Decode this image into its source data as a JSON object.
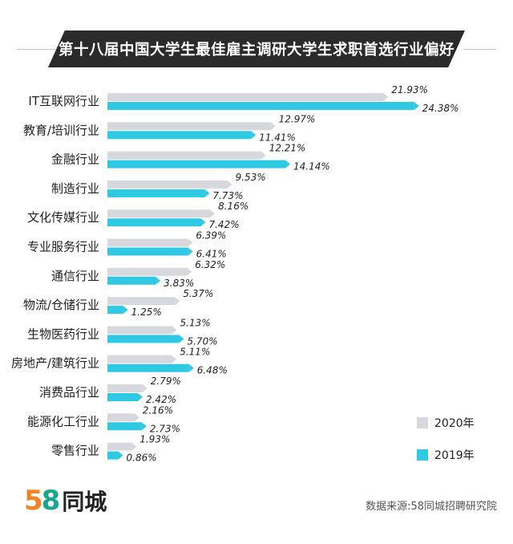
{
  "title": "第十八届中国大学生最佳雇主调研大学生求职首选行业偏好",
  "source": "数据来源:58同城招聘研究院",
  "logo": {
    "num_a": "5",
    "num_b": "8",
    "text": "同城"
  },
  "colors": {
    "s2020": "#d7d8de",
    "s2019": "#2fc9e4",
    "title_bg": "#2b2b2b"
  },
  "chart_data": {
    "type": "bar",
    "orientation": "horizontal",
    "categories": [
      "IT互联网行业",
      "教育/培训行业",
      "金融行业",
      "制造行业",
      "文化传媒行业",
      "专业服务行业",
      "通信行业",
      "物流/仓储行业",
      "生物医药行业",
      "房地产/建筑行业",
      "消费品行业",
      "能源化工行业",
      "零售行业"
    ],
    "series": [
      {
        "name": "2020年",
        "values": [
          21.93,
          12.97,
          12.21,
          9.53,
          8.16,
          6.39,
          6.32,
          5.37,
          5.13,
          5.11,
          2.79,
          2.16,
          1.93
        ]
      },
      {
        "name": "2019年",
        "values": [
          24.38,
          11.41,
          14.14,
          7.73,
          7.42,
          6.41,
          3.83,
          1.25,
          5.7,
          6.48,
          2.42,
          2.73,
          0.86
        ]
      }
    ],
    "value_suffix": "%",
    "xlim": [
      0,
      27
    ],
    "legend_position": "bottom-right",
    "grid": false
  }
}
